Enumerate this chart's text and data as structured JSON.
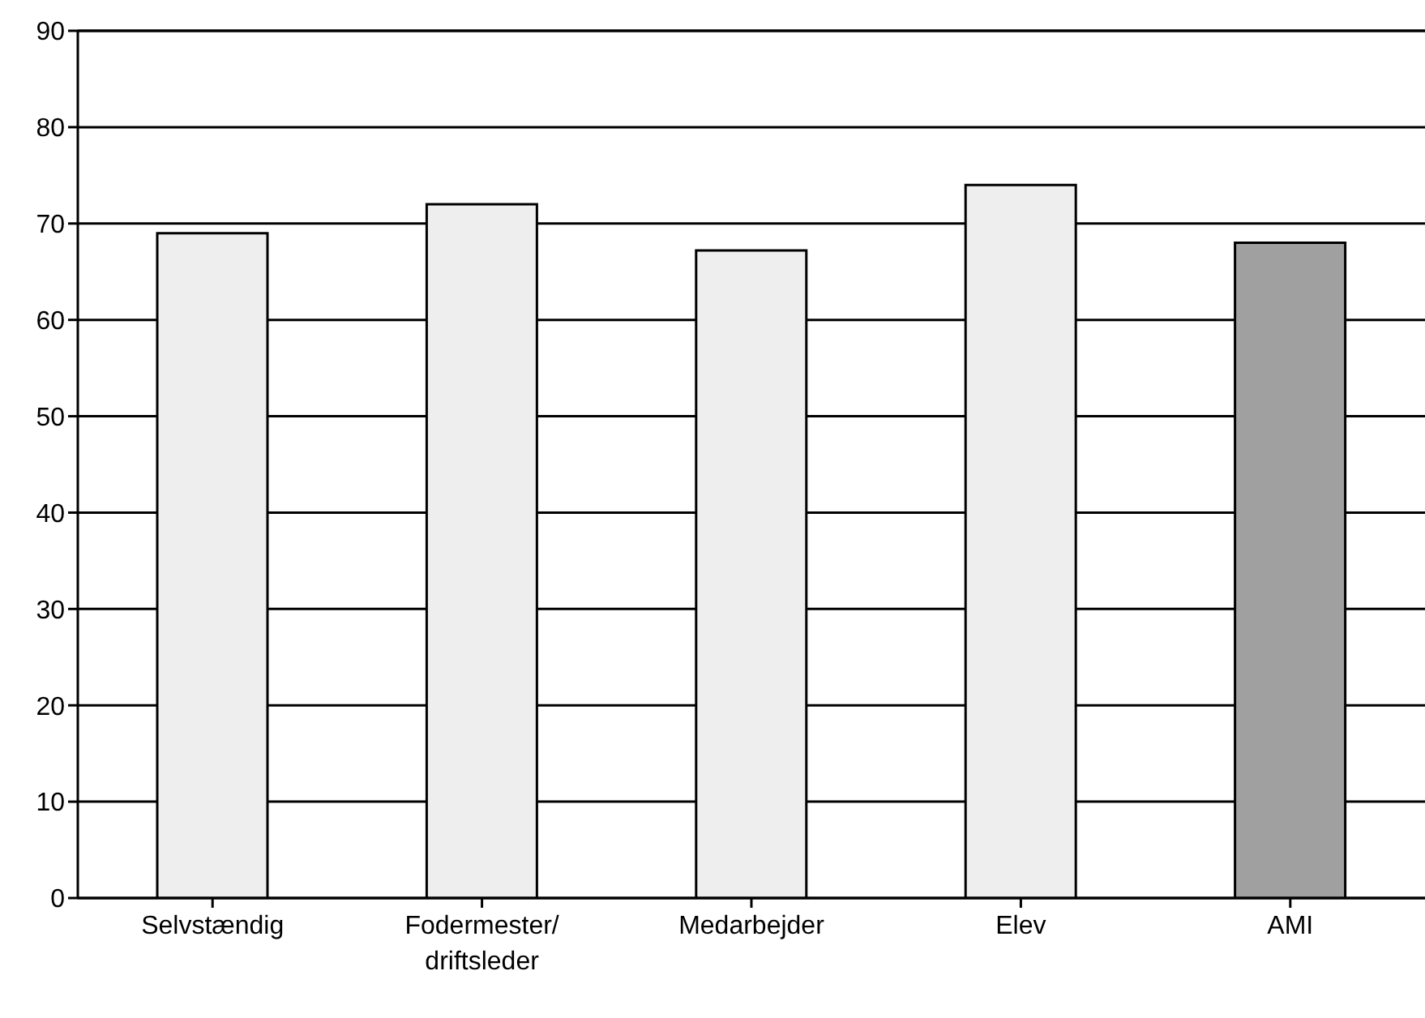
{
  "chart_data": {
    "type": "bar",
    "categories": [
      "Selvstændig",
      "Fodermester/driftsleder",
      "Medarbejder",
      "Elev",
      "AMI"
    ],
    "values": [
      69,
      72,
      67.2,
      74,
      68
    ],
    "colors": [
      "#eeeeee",
      "#eeeeee",
      "#eeeeee",
      "#eeeeee",
      "#a0a0a0"
    ],
    "ylim": [
      0,
      90
    ],
    "yticks": [
      0,
      10,
      20,
      30,
      40,
      50,
      60,
      70,
      80,
      90
    ],
    "grid": "y",
    "legend": false
  }
}
